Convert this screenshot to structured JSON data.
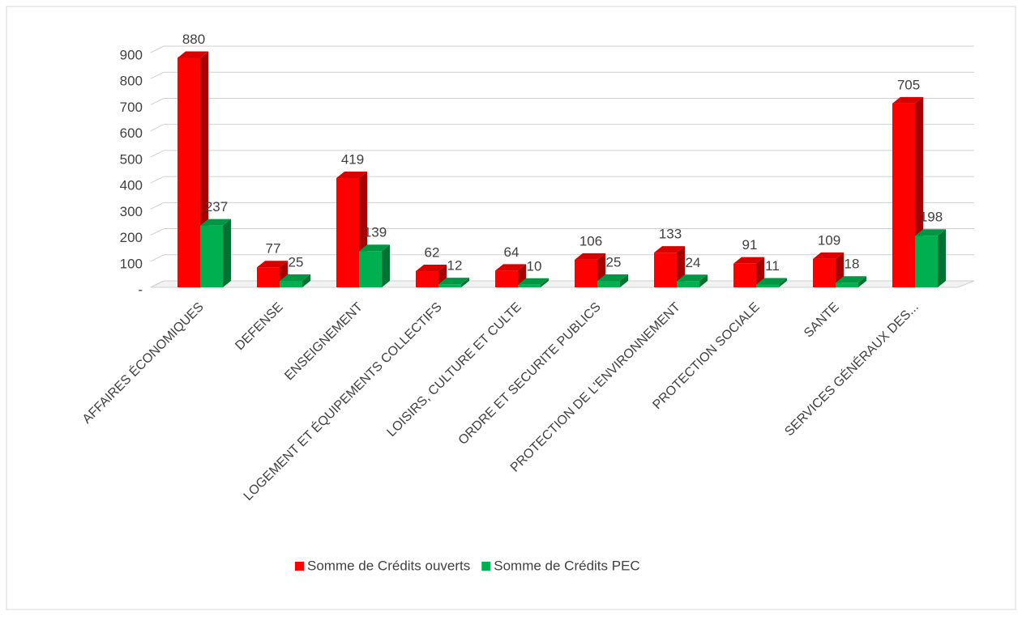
{
  "chart_data": {
    "type": "bar3d",
    "categories": [
      "AFFAIRES ÉCONOMIQUES",
      "DEFENSE",
      "ENSEIGNEMENT",
      "LOGEMENT ET ÉQUIPEMENTS COLLECTIFS",
      "LOISIRS, CULTURE ET CULTE",
      "ORDRE ET SECURITE PUBLICS",
      "PROTECTION DE L'ENVIRONNEMENT",
      "PROTECTION SOCIALE",
      "SANTE",
      "SERVICES GÉNÉRAUX DES..."
    ],
    "series": [
      {
        "name": "Somme de Crédits ouverts",
        "color": "#ff0000",
        "values": [
          880,
          77,
          419,
          62,
          64,
          106,
          133,
          91,
          109,
          705
        ]
      },
      {
        "name": "Somme de Crédits PEC",
        "color": "#00b050",
        "values": [
          237,
          25,
          139,
          12,
          10,
          25,
          24,
          11,
          18,
          198
        ]
      }
    ],
    "ylim": [
      0,
      900
    ],
    "yticks": [
      {
        "value": 0,
        "label": "-"
      },
      100,
      200,
      300,
      400,
      500,
      600,
      700,
      800,
      900
    ],
    "grid": true,
    "legend": "bottom"
  }
}
